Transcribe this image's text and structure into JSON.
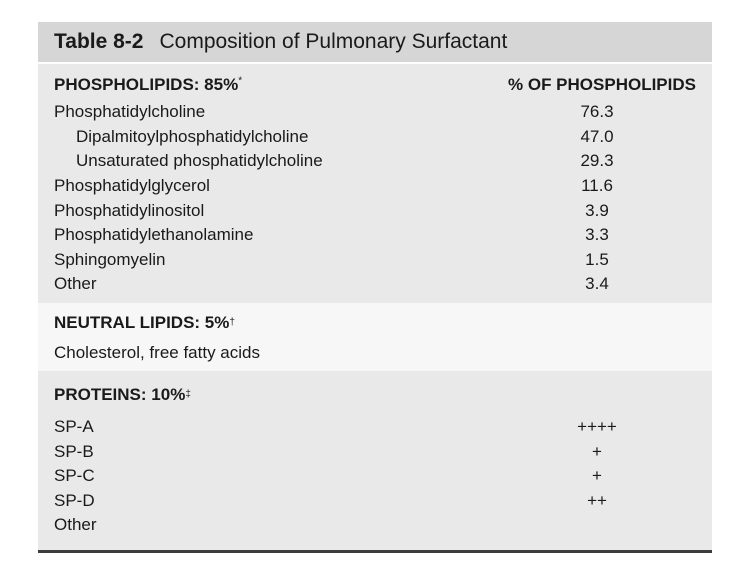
{
  "title": {
    "number": "Table 8-2",
    "text": "Composition of Pulmonary Surfactant"
  },
  "phospholipids": {
    "header": "PHOSPHOLIPIDS: 85%",
    "header_mark": "*",
    "column_header": "% OF PHOSPHOLIPIDS",
    "rows": [
      {
        "label": "Phosphatidylcholine",
        "value": "76.3"
      },
      {
        "label": "Dipalmitoylphosphatidylcholine",
        "value": "47.0"
      },
      {
        "label": "Unsaturated phosphatidylcholine",
        "value": "29.3"
      },
      {
        "label": "Phosphatidylglycerol",
        "value": "11.6"
      },
      {
        "label": "Phosphatidylinositol",
        "value": "3.9"
      },
      {
        "label": "Phosphatidylethanolamine",
        "value": "3.3"
      },
      {
        "label": "Sphingomyelin",
        "value": "1.5"
      },
      {
        "label": "Other",
        "value": "3.4"
      }
    ]
  },
  "neutral_lipids": {
    "header": "NEUTRAL LIPIDS: 5%",
    "header_mark": "†",
    "text": "Cholesterol, free fatty acids"
  },
  "proteins": {
    "header": "PROTEINS: 10%",
    "header_mark": "‡",
    "rows": [
      {
        "label": "SP-A",
        "value": "++++"
      },
      {
        "label": "SP-B",
        "value": "+"
      },
      {
        "label": "SP-C",
        "value": "+"
      },
      {
        "label": "SP-D",
        "value": "++"
      },
      {
        "label": "Other",
        "value": ""
      }
    ]
  }
}
